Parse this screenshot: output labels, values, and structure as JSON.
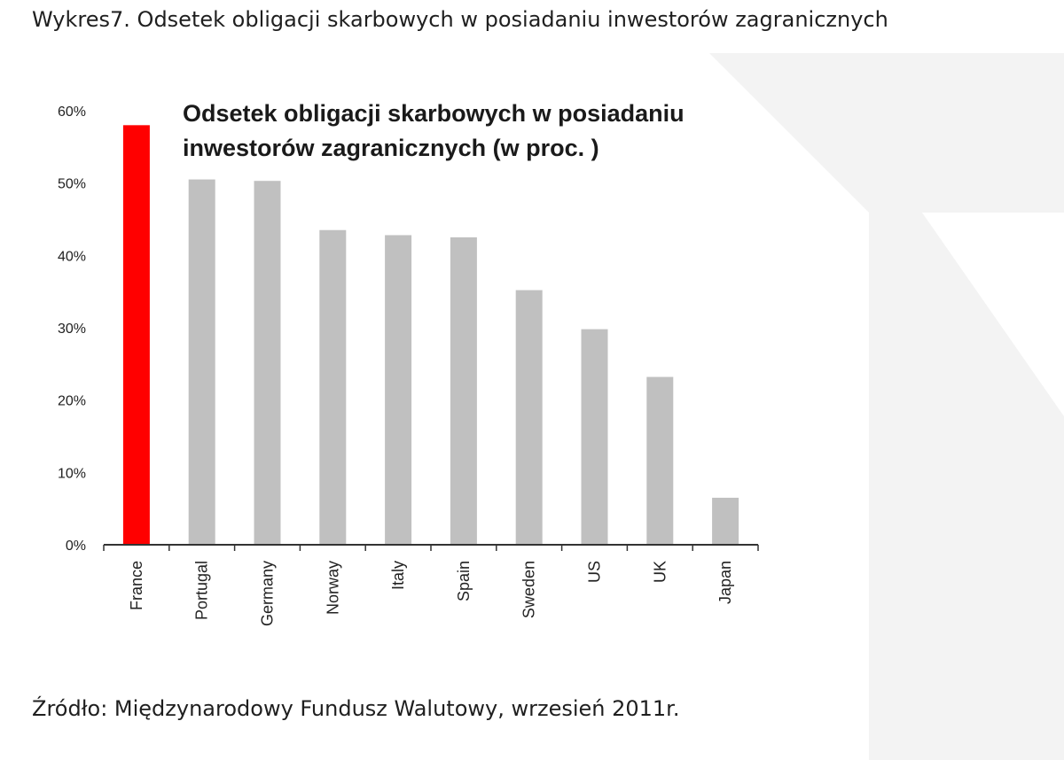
{
  "page": {
    "heading": "Wykres7. Odsetek obligacji skarbowych w posiadaniu inwestorów zagranicznych",
    "source_note": "Źródło: Międzynarodowy Fundusz Walutowy, wrzesień 2011r."
  },
  "chart_data": {
    "type": "bar",
    "title_lines": [
      "Odsetek obligacji skarbowych w posiadaniu",
      "inwestorów zagranicznych (w proc. )"
    ],
    "categories": [
      "France",
      "Portugal",
      "Germany",
      "Norway",
      "Italy",
      "Spain",
      "Sweden",
      "US",
      "UK",
      "Japan"
    ],
    "values": [
      58,
      50.5,
      50.3,
      43.5,
      42.8,
      42.5,
      35.2,
      29.8,
      23.2,
      6.5
    ],
    "ylim": [
      0,
      60
    ],
    "yticks": [
      0,
      10,
      20,
      30,
      40,
      50,
      60
    ],
    "ytick_labels": [
      "0%",
      "10%",
      "20%",
      "30%",
      "40%",
      "50%",
      "60%"
    ],
    "grid": false,
    "colors": {
      "highlight": "#ff0000",
      "default": "#c0c0c0",
      "axis": "#333333"
    },
    "highlight_category": "France"
  }
}
